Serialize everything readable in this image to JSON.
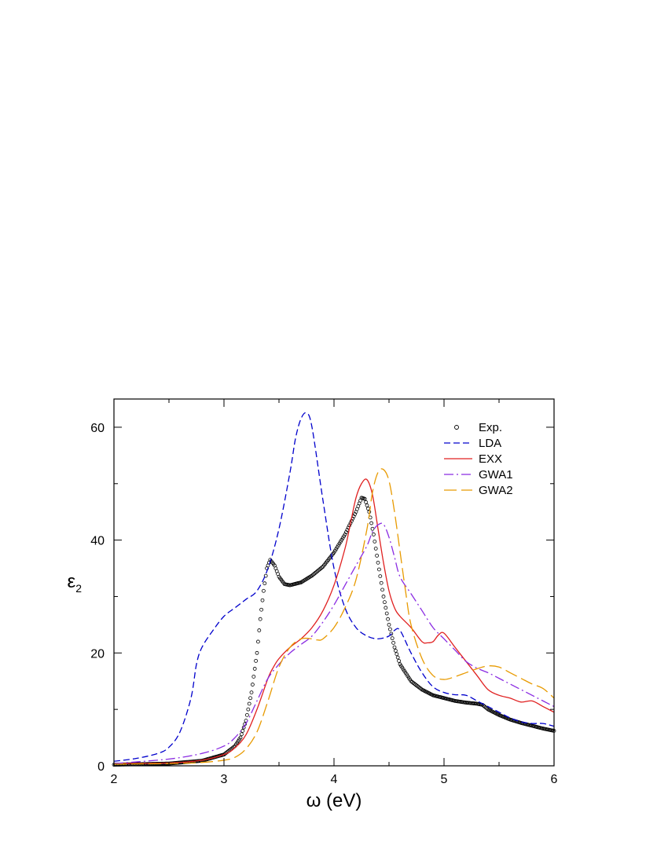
{
  "chart_data": {
    "type": "line",
    "title": "",
    "xlabel": "ω (eV)",
    "ylabel": "ε",
    "ylabel_subscript": "2",
    "xlim": [
      2,
      6
    ],
    "ylim": [
      0,
      65
    ],
    "xticks": [
      2,
      3,
      4,
      5,
      6
    ],
    "yticks": [
      0,
      20,
      40,
      60
    ],
    "grid": false,
    "legend_position": "top-right",
    "series": [
      {
        "name": "Exp.",
        "style": "circles",
        "color": "#000000",
        "x": [
          2.0,
          2.5,
          2.8,
          3.0,
          3.1,
          3.15,
          3.2,
          3.25,
          3.3,
          3.33,
          3.36,
          3.39,
          3.42,
          3.46,
          3.5,
          3.55,
          3.6,
          3.7,
          3.8,
          3.9,
          4.0,
          4.1,
          4.2,
          4.25,
          4.28,
          4.32,
          4.36,
          4.4,
          4.45,
          4.5,
          4.55,
          4.6,
          4.7,
          4.8,
          4.9,
          5.0,
          5.1,
          5.2,
          5.3,
          5.35,
          5.4,
          5.5,
          5.6,
          5.7,
          5.8,
          5.9,
          6.0
        ],
        "y": [
          0.2,
          0.4,
          0.9,
          2.0,
          3.5,
          5.0,
          8.0,
          13.0,
          20.0,
          26.0,
          31.0,
          35.0,
          36.5,
          35.5,
          33.5,
          32.2,
          32.0,
          32.5,
          33.7,
          35.3,
          37.8,
          41.0,
          45.0,
          47.5,
          47.3,
          45.0,
          41.0,
          36.0,
          30.0,
          25.0,
          21.0,
          18.0,
          15.0,
          13.5,
          12.5,
          12.0,
          11.5,
          11.2,
          11.0,
          10.8,
          10.0,
          9.0,
          8.2,
          7.6,
          7.1,
          6.6,
          6.2
        ]
      },
      {
        "name": "LDA",
        "style": "dashed",
        "color": "#0000cc",
        "x": [
          2.0,
          2.2,
          2.4,
          2.5,
          2.6,
          2.7,
          2.75,
          2.8,
          2.9,
          3.0,
          3.1,
          3.2,
          3.3,
          3.4,
          3.5,
          3.6,
          3.65,
          3.7,
          3.75,
          3.8,
          3.9,
          4.0,
          4.1,
          4.2,
          4.3,
          4.4,
          4.5,
          4.55,
          4.6,
          4.7,
          4.8,
          4.9,
          5.0,
          5.1,
          5.2,
          5.3,
          5.4,
          5.5,
          5.6,
          5.7,
          5.8,
          5.9,
          6.0
        ],
        "y": [
          0.8,
          1.3,
          2.2,
          3.3,
          6.0,
          12.0,
          18.0,
          21.0,
          24.0,
          26.5,
          28.0,
          29.5,
          31.0,
          35.0,
          42.0,
          52.0,
          58.0,
          61.5,
          62.5,
          60.0,
          47.0,
          35.0,
          28.0,
          24.5,
          23.0,
          22.5,
          23.0,
          24.0,
          24.0,
          20.0,
          16.5,
          14.0,
          13.0,
          12.6,
          12.5,
          11.5,
          10.5,
          9.5,
          8.5,
          7.8,
          7.5,
          7.5,
          7.0
        ]
      },
      {
        "name": "EXX",
        "style": "solid",
        "color": "#e02020",
        "x": [
          2.0,
          2.5,
          2.8,
          3.0,
          3.1,
          3.2,
          3.3,
          3.4,
          3.45,
          3.5,
          3.6,
          3.7,
          3.8,
          3.9,
          4.0,
          4.1,
          4.15,
          4.2,
          4.25,
          4.3,
          4.35,
          4.4,
          4.45,
          4.5,
          4.55,
          4.6,
          4.7,
          4.8,
          4.85,
          4.9,
          4.95,
          5.0,
          5.1,
          5.2,
          5.3,
          5.4,
          5.5,
          5.6,
          5.7,
          5.8,
          5.9,
          6.0
        ],
        "y": [
          0.4,
          0.5,
          1.0,
          2.0,
          3.2,
          5.5,
          10.0,
          15.5,
          17.5,
          19.0,
          21.0,
          22.5,
          24.5,
          27.5,
          32.0,
          38.5,
          43.0,
          47.5,
          50.0,
          50.7,
          48.0,
          42.0,
          36.0,
          31.0,
          28.0,
          26.5,
          24.5,
          22.0,
          21.8,
          22.0,
          23.2,
          23.5,
          21.0,
          18.5,
          16.0,
          13.5,
          12.5,
          12.0,
          11.3,
          11.5,
          10.5,
          9.5
        ]
      },
      {
        "name": "GWA1",
        "style": "dash-dot",
        "color": "#8a2be2",
        "x": [
          2.0,
          2.5,
          2.8,
          3.0,
          3.1,
          3.2,
          3.3,
          3.4,
          3.5,
          3.6,
          3.7,
          3.8,
          3.9,
          4.0,
          4.1,
          4.2,
          4.3,
          4.35,
          4.4,
          4.45,
          4.5,
          4.55,
          4.6,
          4.7,
          4.8,
          4.9,
          5.0,
          5.1,
          5.2,
          5.3,
          5.4,
          5.5,
          5.6,
          5.7,
          5.8,
          5.9,
          6.0
        ],
        "y": [
          0.4,
          1.2,
          2.2,
          3.5,
          5.0,
          7.5,
          11.5,
          15.5,
          18.0,
          20.0,
          21.5,
          23.0,
          25.5,
          28.5,
          32.0,
          35.5,
          39.0,
          41.5,
          42.7,
          42.8,
          40.5,
          37.0,
          33.5,
          30.5,
          27.5,
          24.5,
          22.5,
          20.5,
          18.5,
          17.3,
          16.5,
          15.5,
          14.5,
          13.5,
          12.5,
          11.5,
          10.5
        ]
      },
      {
        "name": "GWA2",
        "style": "long-dash",
        "color": "#e89a00",
        "x": [
          2.0,
          2.5,
          2.8,
          3.0,
          3.1,
          3.2,
          3.3,
          3.4,
          3.5,
          3.6,
          3.7,
          3.8,
          3.85,
          3.9,
          4.0,
          4.1,
          4.2,
          4.3,
          4.35,
          4.4,
          4.45,
          4.5,
          4.55,
          4.6,
          4.65,
          4.7,
          4.8,
          4.9,
          5.0,
          5.1,
          5.2,
          5.3,
          5.4,
          5.5,
          5.6,
          5.7,
          5.8,
          5.9,
          6.0
        ],
        "y": [
          0.3,
          0.4,
          0.6,
          1.0,
          1.5,
          3.0,
          6.0,
          11.5,
          17.5,
          21.0,
          22.5,
          22.5,
          22.3,
          22.5,
          24.5,
          28.0,
          33.0,
          42.0,
          48.5,
          52.0,
          52.5,
          50.5,
          45.0,
          38.0,
          31.0,
          25.0,
          19.0,
          16.0,
          15.3,
          15.8,
          16.5,
          17.2,
          17.7,
          17.5,
          16.5,
          15.5,
          14.5,
          13.7,
          12.0
        ]
      }
    ]
  }
}
